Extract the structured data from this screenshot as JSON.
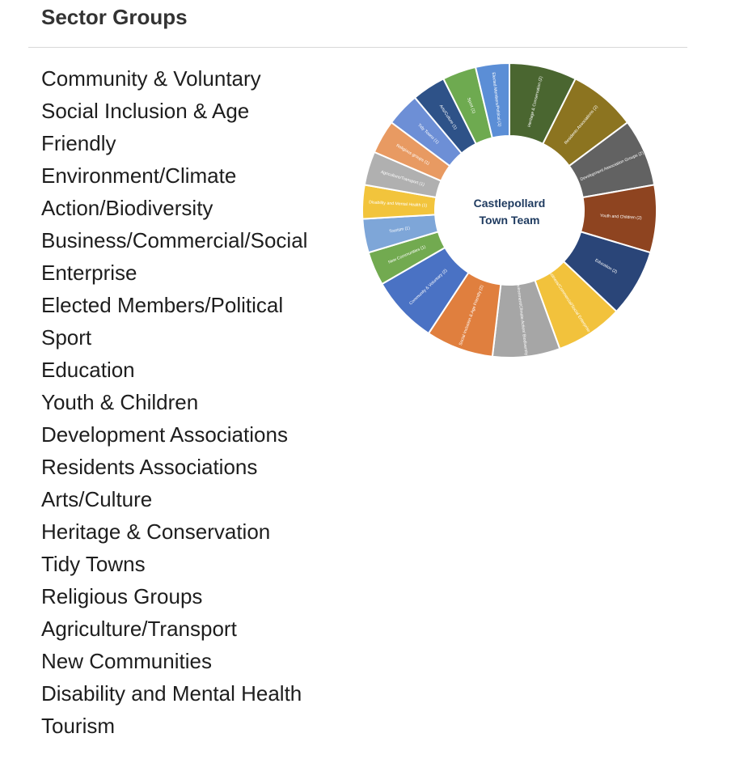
{
  "header": {
    "title": "Sector Groups"
  },
  "sectors": [
    "Community & Voluntary",
    "Social Inclusion & Age",
    "Friendly",
    "Environment/Climate",
    "Action/Biodiversity",
    "Business/Commercial/Social",
    "Enterprise",
    "Elected Members/Political",
    "Sport",
    "Education",
    "Youth & Children",
    "Development Associations",
    "Residents Associations",
    "Arts/Culture",
    "Heritage & Conservation",
    "Tidy Towns",
    "Religious Groups",
    "Agriculture/Transport",
    "New Communities",
    "Disability and Mental Health",
    "Tourism"
  ],
  "chart_data": {
    "type": "pie",
    "title": "",
    "center_label": [
      "Castlepollard",
      "Town Team"
    ],
    "categories": [
      "Heritage & Conservation (2)",
      "Residents Associations (2)",
      "Development Association Groups (2)",
      "Youth and Children (2)",
      "Education (2)",
      "Business/Commercial/Social Enterprise (2)",
      "Environment/Climate Action/ Biodiversity (2)",
      "Social Inclusion & Age Friendly (2)",
      "Community & Voluntary (2)",
      "New Communities (1)",
      "Tourism (1)",
      "Disability and Mental Health (1)",
      "Agriculture/Transport (1)",
      "Religious groups (1)",
      "Tidy Towns (1)",
      "Arts/Culture (1)",
      "Sport (1)",
      "Elected Members/Political (1)"
    ],
    "values": [
      2,
      2,
      2,
      2,
      2,
      2,
      2,
      2,
      2,
      1,
      1,
      1,
      1,
      1,
      1,
      1,
      1,
      1
    ],
    "colors": [
      "#4a6630",
      "#8c7420",
      "#626262",
      "#8e4420",
      "#2a4578",
      "#f2c23c",
      "#a6a6a6",
      "#e07f3e",
      "#4a72c4",
      "#72aa50",
      "#7ea6d8",
      "#f2c43c",
      "#b0b0b0",
      "#e89a62",
      "#6d8fd6",
      "#2e5288",
      "#6eaa50",
      "#5b8ed6"
    ]
  }
}
